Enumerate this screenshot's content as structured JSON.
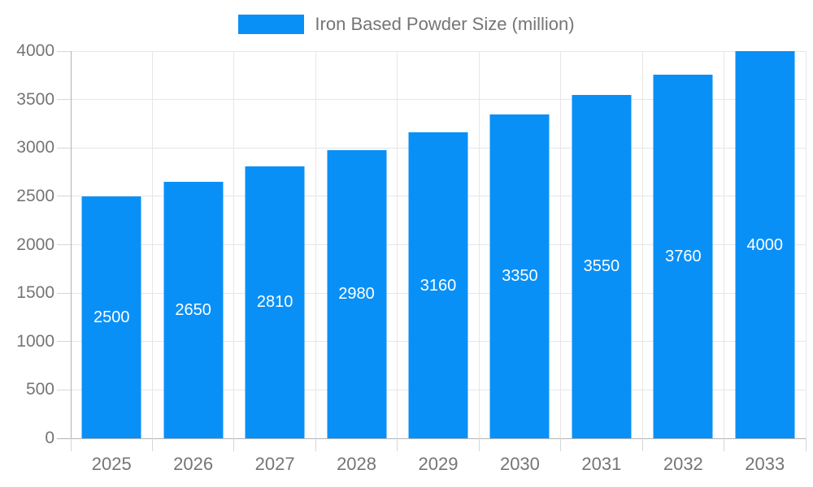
{
  "chart_data": {
    "type": "bar",
    "title": "Iron Based Powder Size (million)",
    "categories": [
      "2025",
      "2026",
      "2027",
      "2028",
      "2029",
      "2030",
      "2031",
      "2032",
      "2033"
    ],
    "values": [
      2500,
      2650,
      2810,
      2980,
      3160,
      3350,
      3550,
      3760,
      4000
    ],
    "xlabel": "",
    "ylabel": "",
    "ylim": [
      0,
      4000
    ],
    "yticks": [
      0,
      500,
      1000,
      1500,
      2000,
      2500,
      3000,
      3500,
      4000
    ],
    "grid": true,
    "legend_position": "top-center",
    "bar_labels_inside": true,
    "colors": {
      "bar": "#0990f7",
      "bar_label": "#ffffff",
      "axis_text": "#757575",
      "gridline": "#e6e6e6",
      "axis_line": "#b3b3b3",
      "tick": "#d6d6d6",
      "background": "#ffffff"
    }
  }
}
